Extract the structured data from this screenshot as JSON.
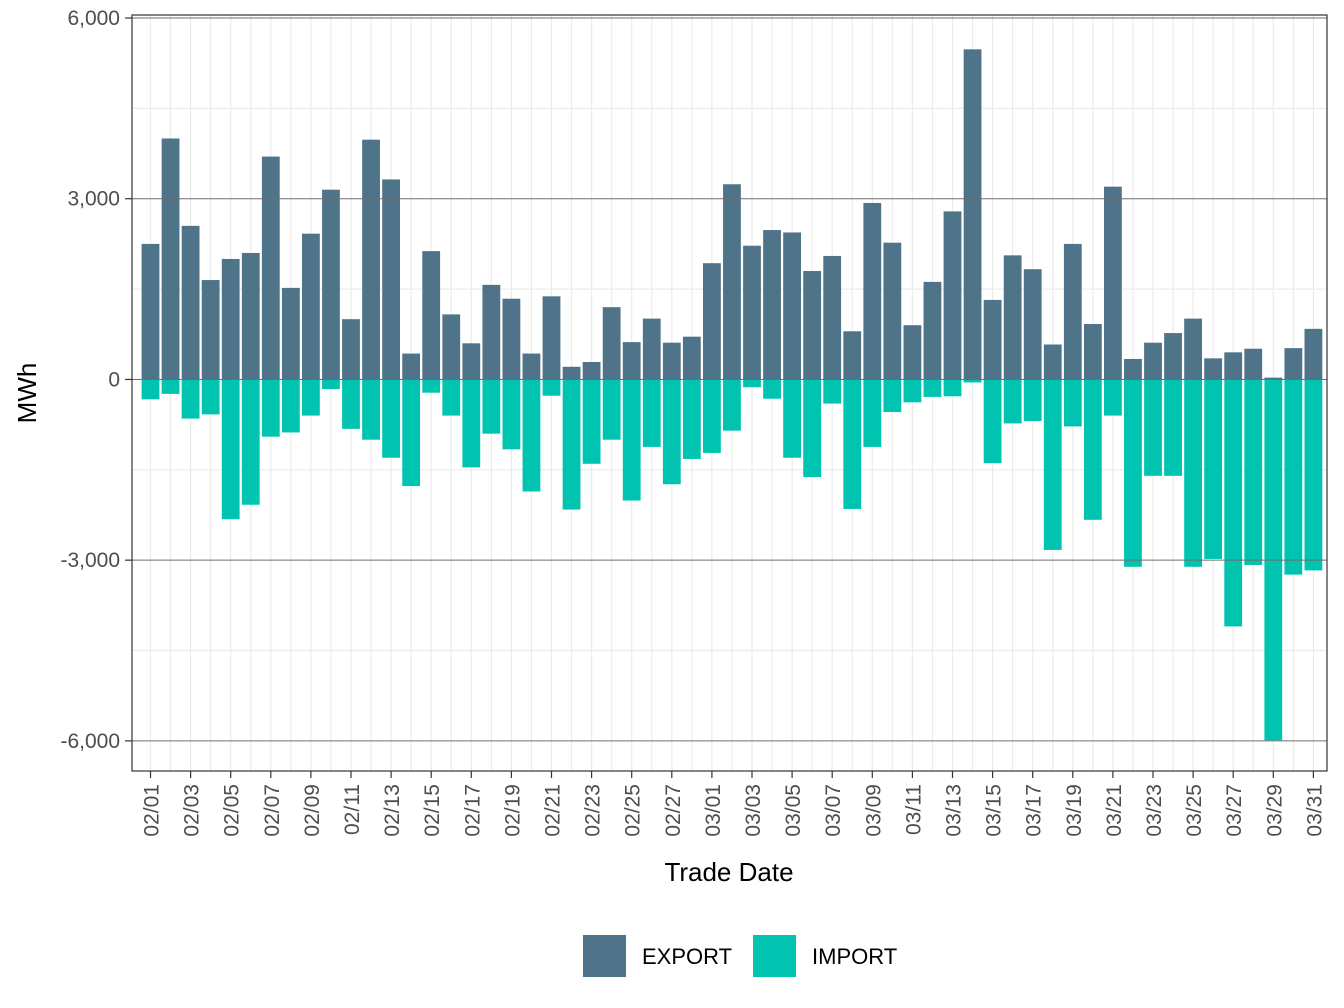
{
  "chart_data": {
    "type": "bar",
    "stacked": "diverging",
    "xlabel": "Trade Date",
    "ylabel": "MWh",
    "ylim": [
      -6500,
      6050
    ],
    "yticks": [
      6000,
      3000,
      0,
      -3000,
      -6000
    ],
    "ytick_labels": [
      "6,000",
      "3,000",
      "0",
      "-3,000",
      "-6,000"
    ],
    "grid": true,
    "legend_position": "bottom",
    "categories": [
      "02/01",
      "02/02",
      "02/03",
      "02/04",
      "02/05",
      "02/06",
      "02/07",
      "02/08",
      "02/09",
      "02/10",
      "02/11",
      "02/12",
      "02/13",
      "02/14",
      "02/15",
      "02/16",
      "02/17",
      "02/18",
      "02/19",
      "02/20",
      "02/21",
      "02/22",
      "02/23",
      "02/24",
      "02/25",
      "02/26",
      "02/27",
      "02/28",
      "03/01",
      "03/02",
      "03/03",
      "03/04",
      "03/05",
      "03/06",
      "03/07",
      "03/08",
      "03/09",
      "03/10",
      "03/11",
      "03/12",
      "03/13",
      "03/14",
      "03/15",
      "03/16",
      "03/17",
      "03/18",
      "03/19",
      "03/20",
      "03/21",
      "03/22",
      "03/23",
      "03/24",
      "03/25",
      "03/26",
      "03/27",
      "03/28",
      "03/29",
      "03/30",
      "03/31"
    ],
    "xtick_labels": [
      "02/01",
      "",
      "02/03",
      "",
      "02/05",
      "",
      "02/07",
      "",
      "02/09",
      "",
      "02/11",
      "",
      "02/13",
      "",
      "02/15",
      "",
      "02/17",
      "",
      "02/19",
      "",
      "02/21",
      "",
      "02/23",
      "",
      "02/25",
      "",
      "02/27",
      "",
      "03/01",
      "",
      "03/03",
      "",
      "03/05",
      "",
      "03/07",
      "",
      "03/09",
      "",
      "03/11",
      "",
      "03/13",
      "",
      "03/15",
      "",
      "03/17",
      "",
      "03/19",
      "",
      "03/21",
      "",
      "03/23",
      "",
      "03/25",
      "",
      "03/27",
      "",
      "03/29",
      "",
      "03/31"
    ],
    "series": [
      {
        "name": "EXPORT",
        "color": "#4f7388",
        "values": [
          2250,
          4000,
          2550,
          1650,
          2000,
          2100,
          3700,
          1520,
          2420,
          3150,
          1000,
          3980,
          3320,
          430,
          2130,
          1080,
          600,
          1570,
          1340,
          430,
          1380,
          210,
          290,
          1200,
          620,
          1010,
          610,
          710,
          1930,
          3240,
          2220,
          2480,
          2440,
          1800,
          2050,
          800,
          2930,
          2270,
          900,
          1620,
          2790,
          5480,
          1320,
          2060,
          1830,
          580,
          2250,
          920,
          3200,
          340,
          610,
          770,
          1010,
          350,
          450,
          510,
          30,
          520,
          840
        ]
      },
      {
        "name": "IMPORT",
        "color": "#00c4b0",
        "values": [
          -330,
          -240,
          -650,
          -580,
          -2320,
          -2080,
          -950,
          -880,
          -600,
          -160,
          -820,
          -1000,
          -1300,
          -1770,
          -220,
          -600,
          -1460,
          -900,
          -1160,
          -1860,
          -270,
          -2160,
          -1400,
          -1000,
          -2010,
          -1120,
          -1740,
          -1320,
          -1220,
          -850,
          -130,
          -320,
          -1300,
          -1620,
          -400,
          -2150,
          -1120,
          -540,
          -380,
          -290,
          -280,
          -50,
          -1390,
          -730,
          -690,
          -2830,
          -780,
          -2330,
          -600,
          -3110,
          -1600,
          -1600,
          -3110,
          -2980,
          -4100,
          -3080,
          -5990,
          -3240,
          -3170
        ]
      }
    ]
  }
}
